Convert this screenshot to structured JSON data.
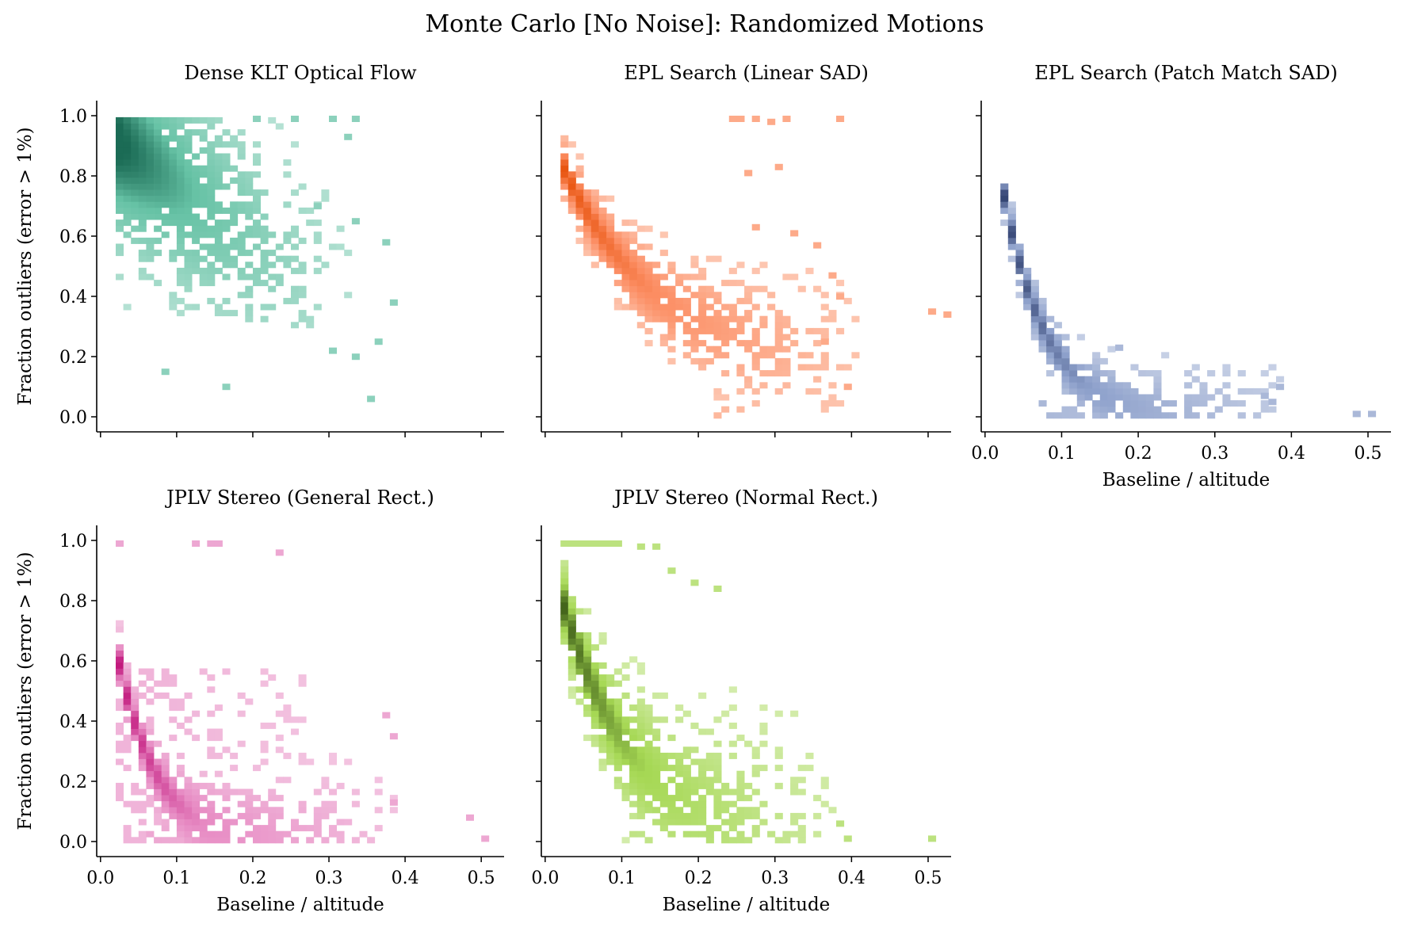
{
  "figure": {
    "suptitle": "Monte Carlo [No Noise]: Randomized Motions",
    "xlabel": "Baseline / altitude",
    "ylabel": "Fraction outliers (error > 1%)",
    "x_ticks": [
      "0.0",
      "0.1",
      "0.2",
      "0.3",
      "0.4",
      "0.5"
    ],
    "y_ticks": [
      "0.0",
      "0.2",
      "0.4",
      "0.6",
      "0.8",
      "1.0"
    ]
  },
  "chart_data": [
    {
      "type": "heatmap",
      "title": "Dense KLT Optical Flow",
      "xlabel": "",
      "ylabel": "Fraction outliers (error > 1%)",
      "color": "#66c2a5",
      "dark_color": "#1b6b55",
      "xlim": [
        -0.005,
        0.53
      ],
      "ylim": [
        -0.05,
        1.05
      ],
      "pattern": {
        "kind": "cloud",
        "x_start": 0.015,
        "x_end": 0.25,
        "y_start": 0.92,
        "y_end": 0.5,
        "spread": 0.22,
        "y_floor": 0.3,
        "sparse_x_max": 0.38
      },
      "sparse_points": [
        [
          0.08,
          0.15
        ],
        [
          0.16,
          0.1
        ],
        [
          0.35,
          0.06
        ],
        [
          0.33,
          0.2
        ],
        [
          0.3,
          0.22
        ],
        [
          0.38,
          0.38
        ],
        [
          0.37,
          0.58
        ],
        [
          0.33,
          0.65
        ],
        [
          0.28,
          0.7
        ],
        [
          0.25,
          0.99
        ],
        [
          0.3,
          0.99
        ],
        [
          0.33,
          0.99
        ],
        [
          0.2,
          0.99
        ],
        [
          0.32,
          0.93
        ],
        [
          0.36,
          0.25
        ]
      ]
    },
    {
      "type": "heatmap",
      "title": "EPL Search (Linear SAD)",
      "xlabel": "",
      "ylabel": "",
      "color": "#fc8d62",
      "dark_color": "#e8540f",
      "xlim": [
        -0.005,
        0.53
      ],
      "ylim": [
        -0.05,
        1.05
      ],
      "pattern": {
        "kind": "curve",
        "a": 0.82,
        "k": 7.5,
        "x_start": 0.02,
        "x_end": 0.4,
        "c": 0.22,
        "k2": 3.5,
        "spread": 0.06,
        "spread_growth": 0.5
      },
      "sparse_points": [
        [
          0.24,
          0.99
        ],
        [
          0.25,
          0.99
        ],
        [
          0.27,
          0.99
        ],
        [
          0.29,
          0.98
        ],
        [
          0.31,
          0.99
        ],
        [
          0.38,
          0.99
        ],
        [
          0.3,
          0.83
        ],
        [
          0.26,
          0.81
        ],
        [
          0.27,
          0.63
        ],
        [
          0.32,
          0.61
        ],
        [
          0.35,
          0.57
        ],
        [
          0.37,
          0.47
        ],
        [
          0.38,
          0.4
        ],
        [
          0.5,
          0.35
        ],
        [
          0.52,
          0.34
        ],
        [
          0.36,
          0.25
        ],
        [
          0.39,
          0.1
        ]
      ]
    },
    {
      "type": "heatmap",
      "title": "EPL Search (Patch Match SAD)",
      "xlabel": "Baseline / altitude",
      "ylabel": "",
      "color": "#8da0cb",
      "dark_color": "#2f3f6e",
      "xlim": [
        -0.005,
        0.53
      ],
      "ylim": [
        -0.05,
        1.05
      ],
      "pattern": {
        "kind": "curve",
        "a": 0.8,
        "k": 18,
        "x_start": 0.015,
        "x_end": 0.39,
        "c": 0.0,
        "k2": 0.0,
        "spread": 0.05,
        "spread_growth": 0.4
      },
      "sparse_points": [
        [
          0.48,
          0.01
        ],
        [
          0.5,
          0.01
        ],
        [
          0.37,
          0.05
        ],
        [
          0.38,
          0.1
        ],
        [
          0.36,
          0.07
        ],
        [
          0.17,
          0.23
        ]
      ]
    },
    {
      "type": "heatmap",
      "title": "JPLV Stereo (General Rect.)",
      "xlabel": "Baseline / altitude",
      "ylabel": "Fraction outliers (error > 1%)",
      "color": "#e78ac3",
      "dark_color": "#c0137a",
      "xlim": [
        -0.005,
        0.53
      ],
      "ylim": [
        -0.05,
        1.05
      ],
      "pattern": {
        "kind": "curve",
        "a": 0.65,
        "k": 20,
        "x_start": 0.015,
        "x_end": 0.38,
        "c": 0.0,
        "k2": 0.0,
        "spread": 0.06,
        "spread_growth": 0.6,
        "fill_above": 0.55
      },
      "sparse_points": [
        [
          0.02,
          0.99
        ],
        [
          0.12,
          0.99
        ],
        [
          0.14,
          0.99
        ],
        [
          0.15,
          0.99
        ],
        [
          0.23,
          0.96
        ],
        [
          0.48,
          0.08
        ],
        [
          0.5,
          0.01
        ],
        [
          0.38,
          0.13
        ],
        [
          0.38,
          0.35
        ],
        [
          0.37,
          0.42
        ]
      ]
    },
    {
      "type": "heatmap",
      "title": "JPLV Stereo (Normal Rect.)",
      "xlabel": "Baseline / altitude",
      "ylabel": "",
      "color": "#a6d854",
      "dark_color": "#3e5e18",
      "xlim": [
        -0.005,
        0.53
      ],
      "ylim": [
        -0.05,
        1.05
      ],
      "pattern": {
        "kind": "curve",
        "a": 0.82,
        "k": 11,
        "x_start": 0.015,
        "x_end": 0.37,
        "c": 0.0,
        "k2": 0.0,
        "spread": 0.09,
        "spread_growth": 0.6
      },
      "sparse_points": [
        [
          0.02,
          0.99
        ],
        [
          0.03,
          0.99
        ],
        [
          0.04,
          0.99
        ],
        [
          0.05,
          0.99
        ],
        [
          0.06,
          0.99
        ],
        [
          0.07,
          0.99
        ],
        [
          0.08,
          0.99
        ],
        [
          0.09,
          0.99
        ],
        [
          0.12,
          0.98
        ],
        [
          0.14,
          0.98
        ],
        [
          0.16,
          0.9
        ],
        [
          0.19,
          0.86
        ],
        [
          0.22,
          0.84
        ],
        [
          0.5,
          0.01
        ],
        [
          0.39,
          0.01
        ],
        [
          0.38,
          0.06
        ]
      ]
    }
  ]
}
